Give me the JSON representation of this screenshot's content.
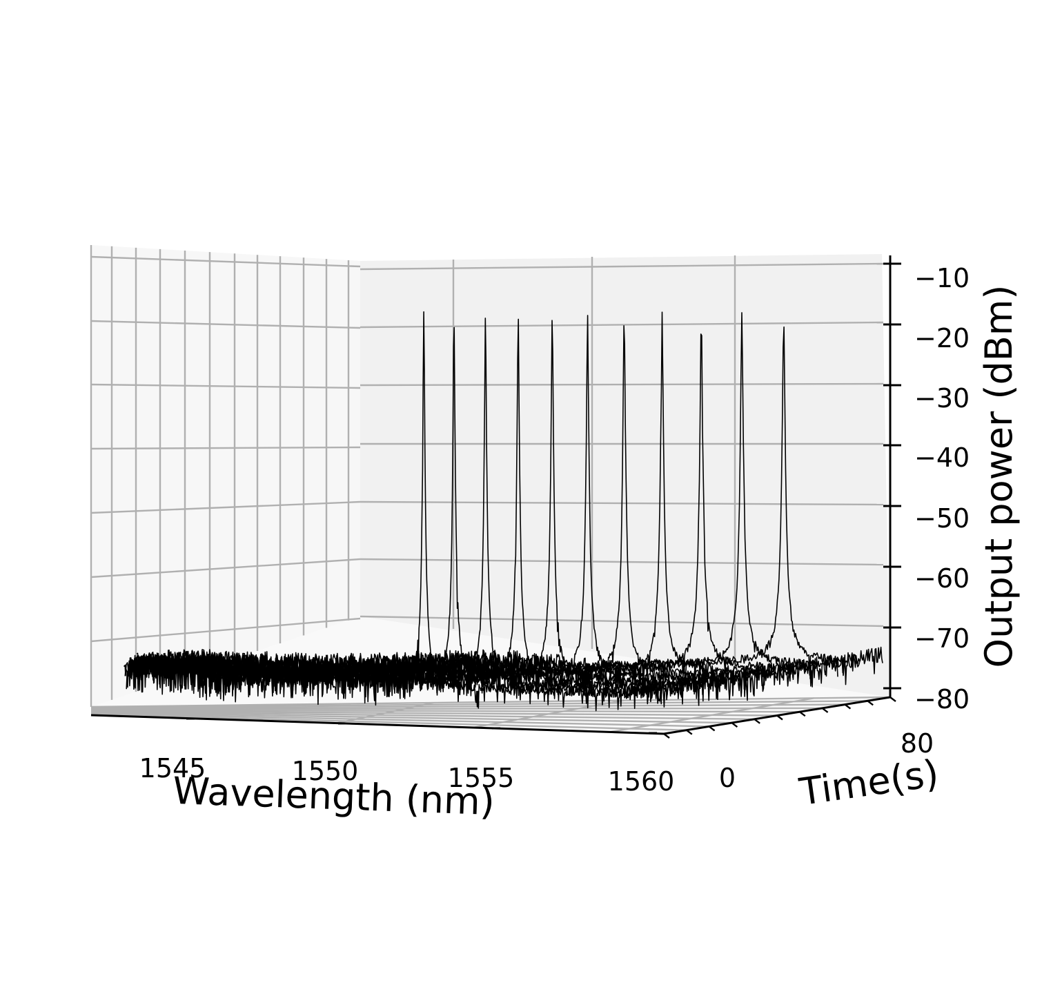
{
  "chart_data": {
    "type": "line",
    "projection": "3d-waterfall",
    "title": "",
    "xlabel": "Wavelength (nm)",
    "ylabel": "Time(s)",
    "zlabel": "Output power (dBm)",
    "xlim": [
      1541,
      1562
    ],
    "ylim": [
      0,
      80
    ],
    "zlim": [
      -80,
      -7
    ],
    "x_ticks": [
      1545,
      1550,
      1555,
      1560
    ],
    "y_ticks": [
      0,
      80
    ],
    "z_ticks": [
      -10,
      -20,
      -30,
      -40,
      -50,
      -60,
      -70,
      -80
    ],
    "z_tick_labels": [
      "−10",
      "−20",
      "−30",
      "−40",
      "−50",
      "−60",
      "−70",
      "−80"
    ],
    "grid": true,
    "line_color": "#000000",
    "noise_floor_dbm": -74,
    "series_note_peaks": [
      {
        "time": 0,
        "peak_wavelength": 1553.2,
        "peak_power": -15.8
      },
      {
        "time": 8,
        "peak_wavelength": 1553.8,
        "peak_power": -16.0
      },
      {
        "time": 16,
        "peak_wavelength": 1554.4,
        "peak_power": -15.9
      },
      {
        "time": 24,
        "peak_wavelength": 1555.0,
        "peak_power": -15.7
      },
      {
        "time": 32,
        "peak_wavelength": 1555.6,
        "peak_power": -15.7
      },
      {
        "time": 40,
        "peak_wavelength": 1556.2,
        "peak_power": -15.7
      },
      {
        "time": 48,
        "peak_wavelength": 1556.8,
        "peak_power": -15.6
      },
      {
        "time": 56,
        "peak_wavelength": 1557.4,
        "peak_power": -15.8
      },
      {
        "time": 64,
        "peak_wavelength": 1558.0,
        "peak_power": -15.9
      },
      {
        "time": 72,
        "peak_wavelength": 1558.6,
        "peak_power": -16.0
      },
      {
        "time": 80,
        "peak_wavelength": 1559.2,
        "peak_power": -16.3
      }
    ]
  }
}
